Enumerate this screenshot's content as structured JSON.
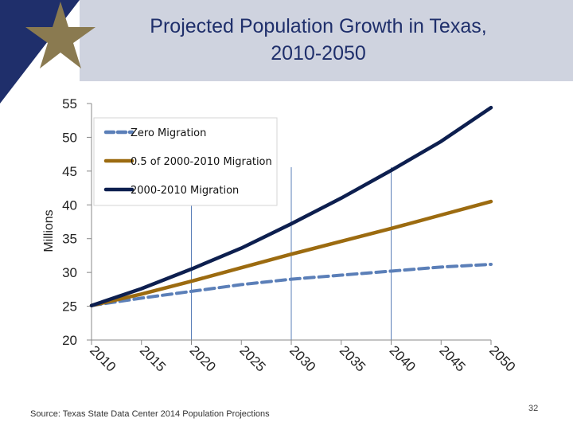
{
  "slide": {
    "title_line1": "Projected Population Growth in Texas,",
    "title_line2": "2010-2050",
    "source": "Source: Texas State Data Center 2014 Population Projections",
    "page_number": "32"
  },
  "colors": {
    "header_bg": "#cfd3df",
    "title": "#1f2f6b",
    "star_gold": "#8a7a50",
    "star_navy": "#1f2f6b",
    "zero": "#5b7fb8",
    "half": "#9c6b10",
    "full": "#0d1f4f",
    "gridline": "#5b7fb8"
  },
  "chart_data": {
    "type": "line",
    "ylabel": "Millions",
    "xlabel": "",
    "ylim": [
      20,
      55
    ],
    "yticks": [
      20,
      25,
      30,
      35,
      40,
      45,
      50,
      55
    ],
    "x": [
      "2010",
      "2015",
      "2020",
      "2025",
      "2030",
      "2035",
      "2040",
      "2045",
      "2050"
    ],
    "legend_position": "top-left",
    "grid": "vertical lines at 2020, 2030, 2040",
    "series": [
      {
        "name": "Zero Migration",
        "style": "dashed",
        "color": "#5b7fb8",
        "values": [
          25.1,
          26.2,
          27.2,
          28.2,
          29.0,
          29.6,
          30.2,
          30.8,
          31.2
        ]
      },
      {
        "name": "0.5 of 2000-2010 Migration",
        "style": "solid",
        "color": "#9c6b10",
        "values": [
          25.1,
          26.8,
          28.7,
          30.7,
          32.7,
          34.6,
          36.5,
          38.5,
          40.5
        ]
      },
      {
        "name": "2000-2010 Migration",
        "style": "solid",
        "color": "#0d1f4f",
        "values": [
          25.1,
          27.6,
          30.5,
          33.6,
          37.2,
          41.0,
          45.1,
          49.4,
          54.4
        ]
      }
    ]
  }
}
